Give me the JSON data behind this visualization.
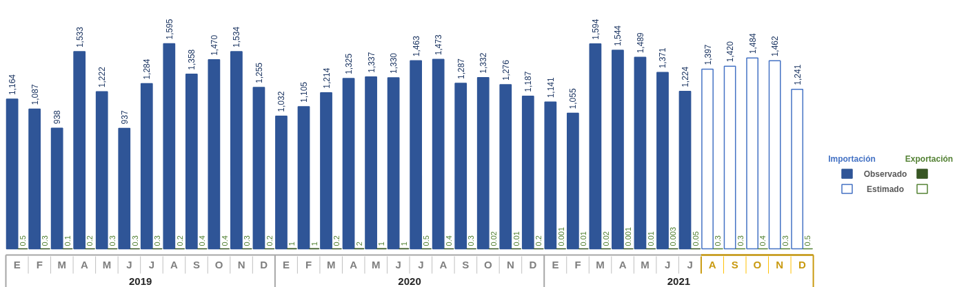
{
  "chart_data": {
    "type": "bar",
    "categories": [
      "E",
      "F",
      "M",
      "A",
      "M",
      "J",
      "J",
      "A",
      "S",
      "O",
      "N",
      "D",
      "E",
      "F",
      "M",
      "A",
      "M",
      "J",
      "J",
      "A",
      "S",
      "O",
      "N",
      "D",
      "E",
      "F",
      "M",
      "A",
      "M",
      "J",
      "J",
      "A",
      "S",
      "O",
      "N",
      "D"
    ],
    "series": [
      {
        "name": "Observado",
        "color": "#2f5597",
        "values": [
          1164,
          1087,
          938,
          1533,
          1222,
          937,
          1284,
          1595,
          1358,
          1470,
          1534,
          1255,
          1032,
          1105,
          1214,
          1325,
          1337,
          1330,
          1463,
          1473,
          1287,
          1332,
          1276,
          1187,
          1141,
          1055,
          1594,
          1544,
          1489,
          1371,
          1224,
          null,
          null,
          null,
          null,
          null
        ],
        "value_labels": [
          "1,164",
          "1,087",
          "938",
          "1,533",
          "1,222",
          "937",
          "1,284",
          "1,595",
          "1,358",
          "1,470",
          "1,534",
          "1,255",
          "1,032",
          "1,105",
          "1,214",
          "1,325",
          "1,337",
          "1,330",
          "1,463",
          "1,473",
          "1,287",
          "1,332",
          "1,276",
          "1,187",
          "1,141",
          "1,055",
          "1,594",
          "1,544",
          "1,489",
          "1,371",
          "1,224",
          null,
          null,
          null,
          null,
          null
        ]
      },
      {
        "name": "Estimado",
        "color": "#4472c4",
        "colors": [
          null,
          null,
          null,
          null,
          null,
          null,
          null,
          null,
          null,
          null,
          null,
          null,
          null,
          null,
          null,
          null,
          null,
          null,
          null,
          null,
          null,
          null,
          null,
          null,
          null,
          null,
          null,
          null,
          null,
          null,
          null,
          "#ffffff",
          "#ffffff",
          "#ffffff",
          "#ffffff",
          "#ffffff"
        ],
        "values": [
          null,
          null,
          null,
          null,
          null,
          null,
          null,
          null,
          null,
          null,
          null,
          null,
          null,
          null,
          null,
          null,
          null,
          null,
          null,
          null,
          null,
          null,
          null,
          null,
          null,
          null,
          null,
          null,
          null,
          null,
          null,
          1397,
          1420,
          1484,
          1462,
          1241
        ],
        "value_labels": [
          null,
          null,
          null,
          null,
          null,
          null,
          null,
          null,
          null,
          null,
          null,
          null,
          null,
          null,
          null,
          null,
          null,
          null,
          null,
          null,
          null,
          null,
          null,
          null,
          null,
          null,
          null,
          null,
          null,
          null,
          null,
          "1,397",
          "1,420",
          "1,484",
          "1,462",
          "1,241"
        ]
      },
      {
        "color": "#375623",
        "values": [
          0.5,
          0.3,
          0.1,
          0.2,
          0.3,
          0.3,
          0.3,
          0.2,
          0.4,
          0.4,
          0.3,
          0.2,
          1,
          1,
          0.2,
          2,
          1,
          1,
          0.5,
          0.4,
          0.3,
          0.02,
          0.01,
          0.2,
          0.001,
          0.01,
          0.02,
          0.001,
          0.01,
          0.003,
          0.05,
          null,
          null,
          null,
          null,
          null
        ],
        "value_labels": [
          "0.5",
          "0.3",
          "0.1",
          "0.2",
          "0.3",
          "0.3",
          "0.3",
          "0.2",
          "0.4",
          "0.4",
          "0.3",
          "0.2",
          "1",
          "1",
          "0.2",
          "2",
          "1",
          "1",
          "0.5",
          "0.4",
          "0.3",
          "0.02",
          "0.01",
          "0.2",
          "0.001",
          "0.01",
          "0.02",
          "0.001",
          "0.01",
          "0.003",
          "0.05",
          null,
          null,
          null,
          null,
          null
        ]
      },
      {
        "color": "#548235",
        "colors": [
          null,
          null,
          null,
          null,
          null,
          null,
          null,
          null,
          null,
          null,
          null,
          null,
          null,
          null,
          null,
          null,
          null,
          null,
          null,
          null,
          null,
          null,
          null,
          null,
          null,
          null,
          null,
          null,
          null,
          null,
          null,
          "#ffffff",
          "#ffffff",
          "#ffffff",
          "#ffffff",
          "#ffffff"
        ],
        "values": [
          null,
          null,
          null,
          null,
          null,
          null,
          null,
          null,
          null,
          null,
          null,
          null,
          null,
          null,
          null,
          null,
          null,
          null,
          null,
          null,
          null,
          null,
          null,
          null,
          null,
          null,
          null,
          null,
          null,
          null,
          null,
          0.3,
          0.3,
          0.4,
          0.3,
          0.5
        ],
        "value_labels": [
          null,
          null,
          null,
          null,
          null,
          null,
          null,
          null,
          null,
          null,
          null,
          null,
          null,
          null,
          null,
          null,
          null,
          null,
          null,
          null,
          null,
          null,
          null,
          null,
          null,
          null,
          null,
          null,
          null,
          null,
          null,
          "0.3",
          "0.3",
          "0.4",
          "0.3",
          "0.5"
        ]
      }
    ],
    "annotations": [
      "Importación",
      "Exportación",
      "2019",
      "2020",
      "2021"
    ],
    "legend": "right",
    "grid": false
  }
}
